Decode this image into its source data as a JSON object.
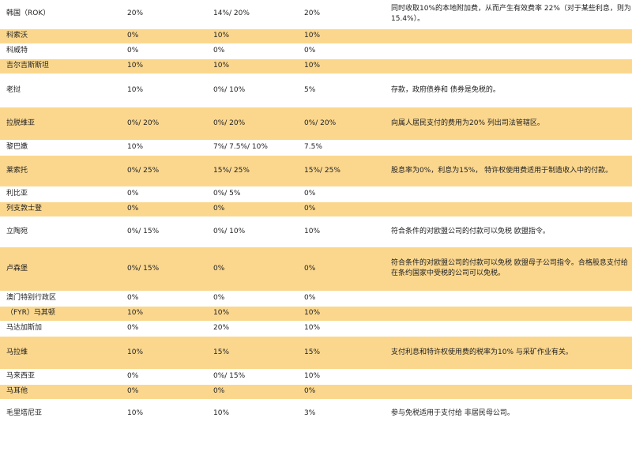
{
  "rows": [
    {
      "country": "韩国（ROK）",
      "a": "20%",
      "b": "14%/ 20%",
      "c": "20%",
      "note": "同时收取10%的本地附加费，从而产生有效费率 22%（对于某些利息，则为15.4%）。",
      "shade": "even",
      "h": 36
    },
    {
      "country": "科索沃",
      "a": "0%",
      "b": "10%",
      "c": "10%",
      "note": "",
      "shade": "odd",
      "h": 19
    },
    {
      "country": "科威特",
      "a": "0%",
      "b": "0%",
      "c": "0%",
      "note": "",
      "shade": "even",
      "h": 19
    },
    {
      "country": "吉尔吉斯斯坦",
      "a": "10%",
      "b": "10%",
      "c": "10%",
      "note": "",
      "shade": "odd",
      "h": 19
    },
    {
      "country": "老挝",
      "a": "10%",
      "b": "0%/ 10%",
      "c": "5%",
      "note": "存款，政府债券和 债券是免税的。",
      "shade": "even",
      "h": 42
    },
    {
      "country": "拉脱维亚",
      "a": "0%/ 20%",
      "b": "0%/ 20%",
      "c": "0%/ 20%",
      "note": "向属人居民支付的费用为20% 列出司法管辖区。",
      "shade": "odd",
      "h": 42
    },
    {
      "country": "黎巴嫩",
      "a": "10%",
      "b": "7%/ 7.5%/ 10%",
      "c": "7.5%",
      "note": "",
      "shade": "even",
      "h": 19
    },
    {
      "country": "莱索托",
      "a": "0%/ 25%",
      "b": "15%/ 25%",
      "c": "15%/ 25%",
      "note": "股息率为0%，利息为15%， 特许权使用费适用于制造收入中的付款。",
      "shade": "odd",
      "h": 40
    },
    {
      "country": "利比亚",
      "a": "0%",
      "b": "0%/ 5%",
      "c": "0%",
      "note": "",
      "shade": "even",
      "h": 19
    },
    {
      "country": "列支敦士登",
      "a": "0%",
      "b": "0%",
      "c": "0%",
      "note": "",
      "shade": "odd",
      "h": 19
    },
    {
      "country": "立陶宛",
      "a": "0%/ 15%",
      "b": "0%/ 10%",
      "c": "10%",
      "note": "符合条件的对欧盟公司的付款可以免税 欧盟指令。",
      "shade": "even",
      "h": 38
    },
    {
      "country": "卢森堡",
      "a": "0%/ 15%",
      "b": "0%",
      "c": "0%",
      "note": "符合条件的对欧盟公司的付款可以免税 欧盟母子公司指令。合格股息支付给 在条约国家中受税的公司可以免税。",
      "shade": "odd",
      "h": 56
    },
    {
      "country": "澳门特别行政区",
      "a": "0%",
      "b": "0%",
      "c": "0%",
      "note": "",
      "shade": "even",
      "h": 19
    },
    {
      "country": "（FYR）马其顿",
      "a": "10%",
      "b": "10%",
      "c": "10%",
      "note": "",
      "shade": "odd",
      "h": 19
    },
    {
      "country": "马达加斯加",
      "a": "0%",
      "b": "20%",
      "c": "10%",
      "note": "",
      "shade": "even",
      "h": 19
    },
    {
      "country": "马拉维",
      "a": "10%",
      "b": "15%",
      "c": "15%",
      "note": "支付利息和特许权使用费的税率为10% 与采矿作业有关。",
      "shade": "odd",
      "h": 42
    },
    {
      "country": "马来西亚",
      "a": "0%",
      "b": "0%/ 15%",
      "c": "10%",
      "note": "",
      "shade": "even",
      "h": 19
    },
    {
      "country": "马耳他",
      "a": "0%",
      "b": "0%",
      "c": "0%",
      "note": "",
      "shade": "odd",
      "h": 19
    },
    {
      "country": "毛里塔尼亚",
      "a": "10%",
      "b": "10%",
      "c": "3%",
      "note": "参与免税适用于支付给 非居民母公司。",
      "shade": "even",
      "h": 36
    }
  ]
}
